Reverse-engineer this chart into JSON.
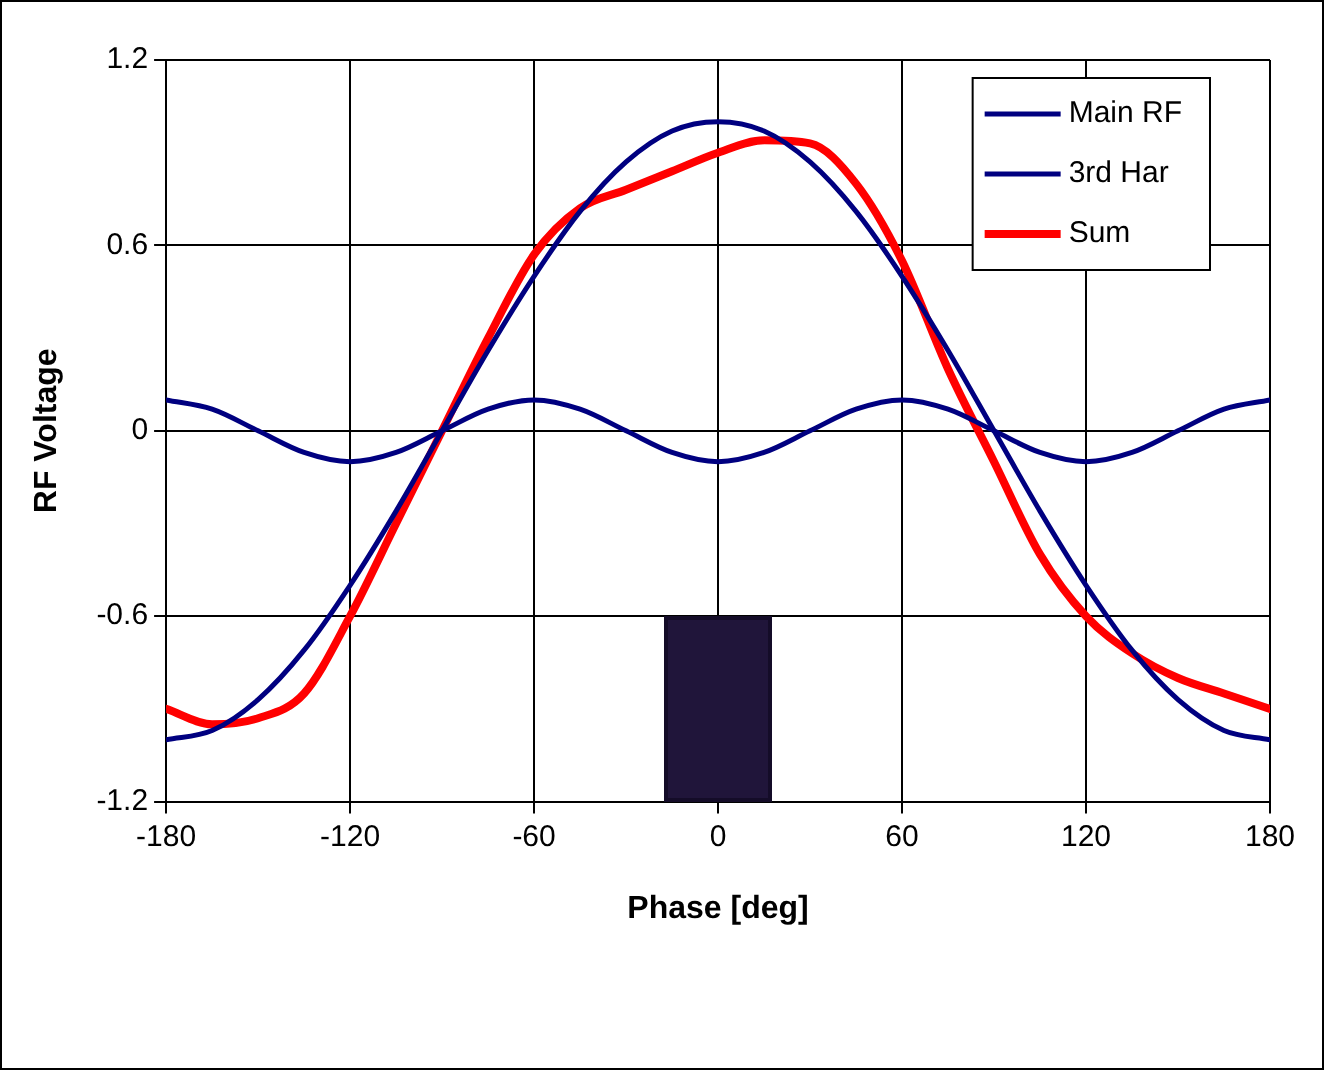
{
  "chart_data": {
    "type": "line",
    "xlabel": "Phase [deg]",
    "ylabel": "RF Voltage",
    "x": [
      -180,
      -165,
      -150,
      -135,
      -120,
      -105,
      -90,
      -75,
      -60,
      -45,
      -30,
      -15,
      0,
      15,
      30,
      45,
      60,
      75,
      90,
      105,
      120,
      135,
      150,
      165,
      180
    ],
    "series": [
      {
        "name": "Main RF",
        "color": "#000080",
        "values": [
          -1.0,
          -0.97,
          -0.87,
          -0.71,
          -0.5,
          -0.26,
          0,
          0.26,
          0.5,
          0.71,
          0.87,
          0.97,
          1.0,
          0.97,
          0.87,
          0.71,
          0.5,
          0.26,
          0,
          -0.26,
          -0.5,
          -0.71,
          -0.87,
          -0.97,
          -1.0
        ]
      },
      {
        "name": "3rd Har",
        "color": "#000080",
        "values": [
          0.1,
          0.07,
          0,
          -0.07,
          -0.1,
          -0.07,
          0,
          0.07,
          0.1,
          0.07,
          0,
          -0.07,
          -0.1,
          -0.07,
          0,
          0.07,
          0.1,
          0.07,
          0,
          -0.07,
          -0.1,
          -0.07,
          0,
          0.07,
          0.1
        ]
      },
      {
        "name": "Sum",
        "color": "#ff0000",
        "values": [
          -0.9,
          -0.95,
          -0.93,
          -0.85,
          -0.6,
          -0.3,
          0,
          0.3,
          0.57,
          0.72,
          0.78,
          0.84,
          0.9,
          0.94,
          0.93,
          0.8,
          0.55,
          0.2,
          -0.1,
          -0.4,
          -0.6,
          -0.72,
          -0.8,
          -0.85,
          -0.9
        ]
      }
    ],
    "xlim": [
      -180,
      180
    ],
    "xticks": [
      -180,
      -120,
      -60,
      0,
      60,
      120,
      180
    ],
    "ylim": [
      -1.2,
      1.2
    ],
    "yticks": [
      -1.2,
      -0.6,
      0,
      0.6,
      1.2
    ],
    "grid": true,
    "legend": "top right",
    "marker": "none",
    "line_style": "solid"
  }
}
